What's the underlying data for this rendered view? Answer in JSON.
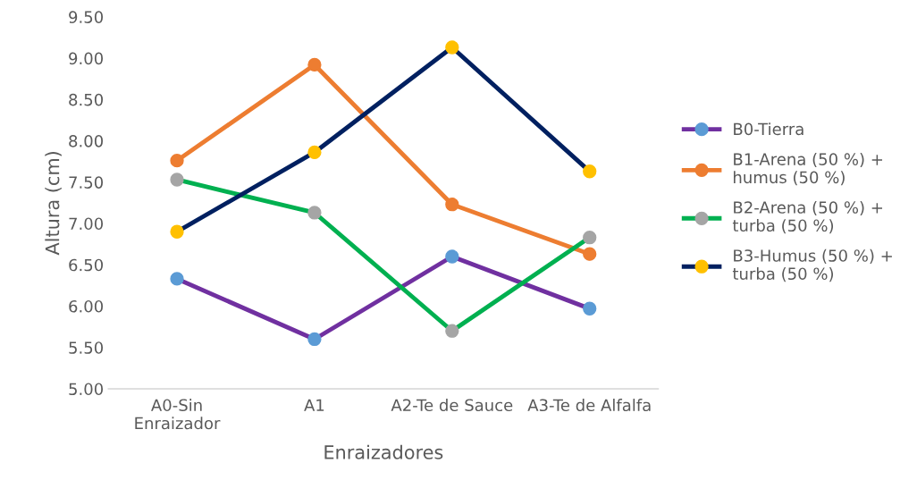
{
  "chart_data": {
    "type": "line",
    "xlabel": "Enraizadores",
    "ylabel": "Altura (cm)",
    "categories": [
      "A0-Sin\nEnraizador",
      "A1",
      "A2-Te de Sauce",
      "A3-Te de Alfalfa"
    ],
    "series": [
      {
        "name": "B0-Tierra",
        "color": "#7030a0",
        "colors": [
          "#5b9bd5",
          "#5b9bd5",
          "#5b9bd5",
          "#5b9bd5"
        ],
        "values": [
          6.33,
          5.6,
          6.6,
          5.97
        ]
      },
      {
        "name": "B1-Arena (50 %) +\nhumus (50 %)",
        "color": "#ed7d31",
        "colors": [
          "#ed7d31",
          "#ed7d31",
          "#ed7d31",
          "#ed7d31"
        ],
        "values": [
          7.76,
          8.92,
          7.23,
          6.63
        ]
      },
      {
        "name": "B2-Arena (50 %) +\nturba (50 %)",
        "color": "#00b050",
        "colors": [
          "#a5a5a5",
          "#a5a5a5",
          "#a5a5a5",
          "#a5a5a5"
        ],
        "values": [
          7.53,
          7.13,
          5.7,
          6.83
        ]
      },
      {
        "name": "B3-Humus (50 %) +\nturba (50 %)",
        "color": "#002060",
        "colors": [
          "#ffc000",
          "#ffc000",
          "#ffc000",
          "#ffc000"
        ],
        "values": [
          6.9,
          7.86,
          9.13,
          7.63
        ]
      }
    ],
    "ylim": [
      5.0,
      9.5
    ],
    "yticks": [
      {
        "value": 5.0,
        "label": "5.00"
      },
      {
        "value": 5.5,
        "label": "5.50"
      },
      {
        "value": 6.0,
        "label": "6.00"
      },
      {
        "value": 6.5,
        "label": "6.50"
      },
      {
        "value": 7.0,
        "label": "7.00"
      },
      {
        "value": 7.5,
        "label": "7.50"
      },
      {
        "value": 8.0,
        "label": "8.00"
      },
      {
        "value": 8.5,
        "label": "8.50"
      },
      {
        "value": 9.0,
        "label": "9.00"
      },
      {
        "value": 9.5,
        "label": "9.50"
      }
    ],
    "grid": false,
    "legend": "right",
    "marker": "circle",
    "line_style": "solid"
  }
}
